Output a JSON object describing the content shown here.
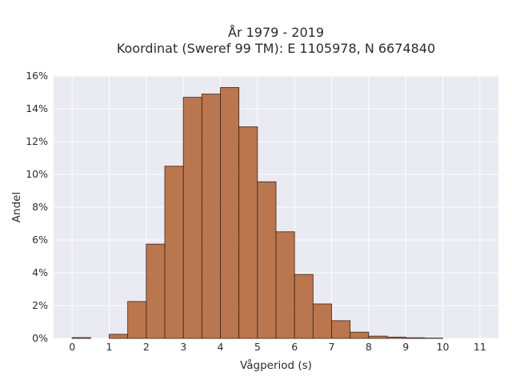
{
  "chart_data": {
    "type": "bar",
    "title_lines": [
      "År 1979 - 2019",
      "Koordinat (Sweref 99 TM): E 1105978, N 6674840"
    ],
    "xlabel": "Vågperiod (s)",
    "ylabel": "Andel",
    "xlim": [
      -0.5,
      11.5
    ],
    "ylim": [
      0,
      16
    ],
    "xticks": [
      0,
      1,
      2,
      3,
      4,
      5,
      6,
      7,
      8,
      9,
      10,
      11
    ],
    "yticks": [
      0,
      2,
      4,
      6,
      8,
      10,
      12,
      14,
      16
    ],
    "ytick_labels": [
      "0%",
      "2%",
      "4%",
      "6%",
      "8%",
      "10%",
      "12%",
      "14%",
      "16%"
    ],
    "bin_width": 0.5,
    "bins": [
      {
        "start": 0.0,
        "value": 0.05
      },
      {
        "start": 0.5,
        "value": 0.0
      },
      {
        "start": 1.0,
        "value": 0.25
      },
      {
        "start": 1.5,
        "value": 2.25
      },
      {
        "start": 2.0,
        "value": 5.75
      },
      {
        "start": 2.5,
        "value": 10.5
      },
      {
        "start": 3.0,
        "value": 14.7
      },
      {
        "start": 3.5,
        "value": 14.9
      },
      {
        "start": 4.0,
        "value": 15.3
      },
      {
        "start": 4.5,
        "value": 12.9
      },
      {
        "start": 5.0,
        "value": 9.55
      },
      {
        "start": 5.5,
        "value": 6.5
      },
      {
        "start": 6.0,
        "value": 3.9
      },
      {
        "start": 6.5,
        "value": 2.1
      },
      {
        "start": 7.0,
        "value": 1.08
      },
      {
        "start": 7.5,
        "value": 0.38
      },
      {
        "start": 8.0,
        "value": 0.14
      },
      {
        "start": 8.5,
        "value": 0.08
      },
      {
        "start": 9.0,
        "value": 0.04
      },
      {
        "start": 9.5,
        "value": 0.02
      }
    ],
    "bar_color": "#b5693c",
    "edge_color": "#3b2418",
    "background_color": "#eaeaf2",
    "grid": true
  }
}
